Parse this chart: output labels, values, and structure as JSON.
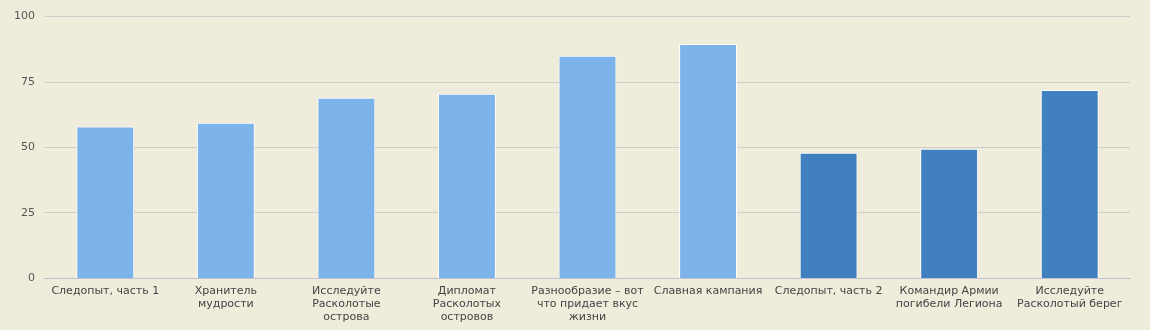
{
  "chart_data": {
    "type": "bar",
    "categories": [
      "Следопыт, часть 1",
      "Хранитель мудрости",
      "Исследуйте Расколотые острова",
      "Дипломат Расколотых островов",
      "Разнообразие – вот что придает вкус жизни",
      "Славная кампания",
      "Следопыт, часть 2",
      "Командир Армии погибели Легиона",
      "Исследуйте Расколотый берег"
    ],
    "values": [
      58,
      59.5,
      69,
      70.5,
      85,
      89.5,
      48,
      49.5,
      72
    ],
    "colors": [
      "#7cb3eb",
      "#7cb3eb",
      "#7cb3eb",
      "#7cb3eb",
      "#7cb3eb",
      "#7cb3eb",
      "#4080bf",
      "#4080bf",
      "#4080bf"
    ],
    "ylim": [
      0,
      100
    ],
    "yticks": [
      0,
      25,
      50,
      75,
      100
    ],
    "grid": "y",
    "legend": false
  }
}
